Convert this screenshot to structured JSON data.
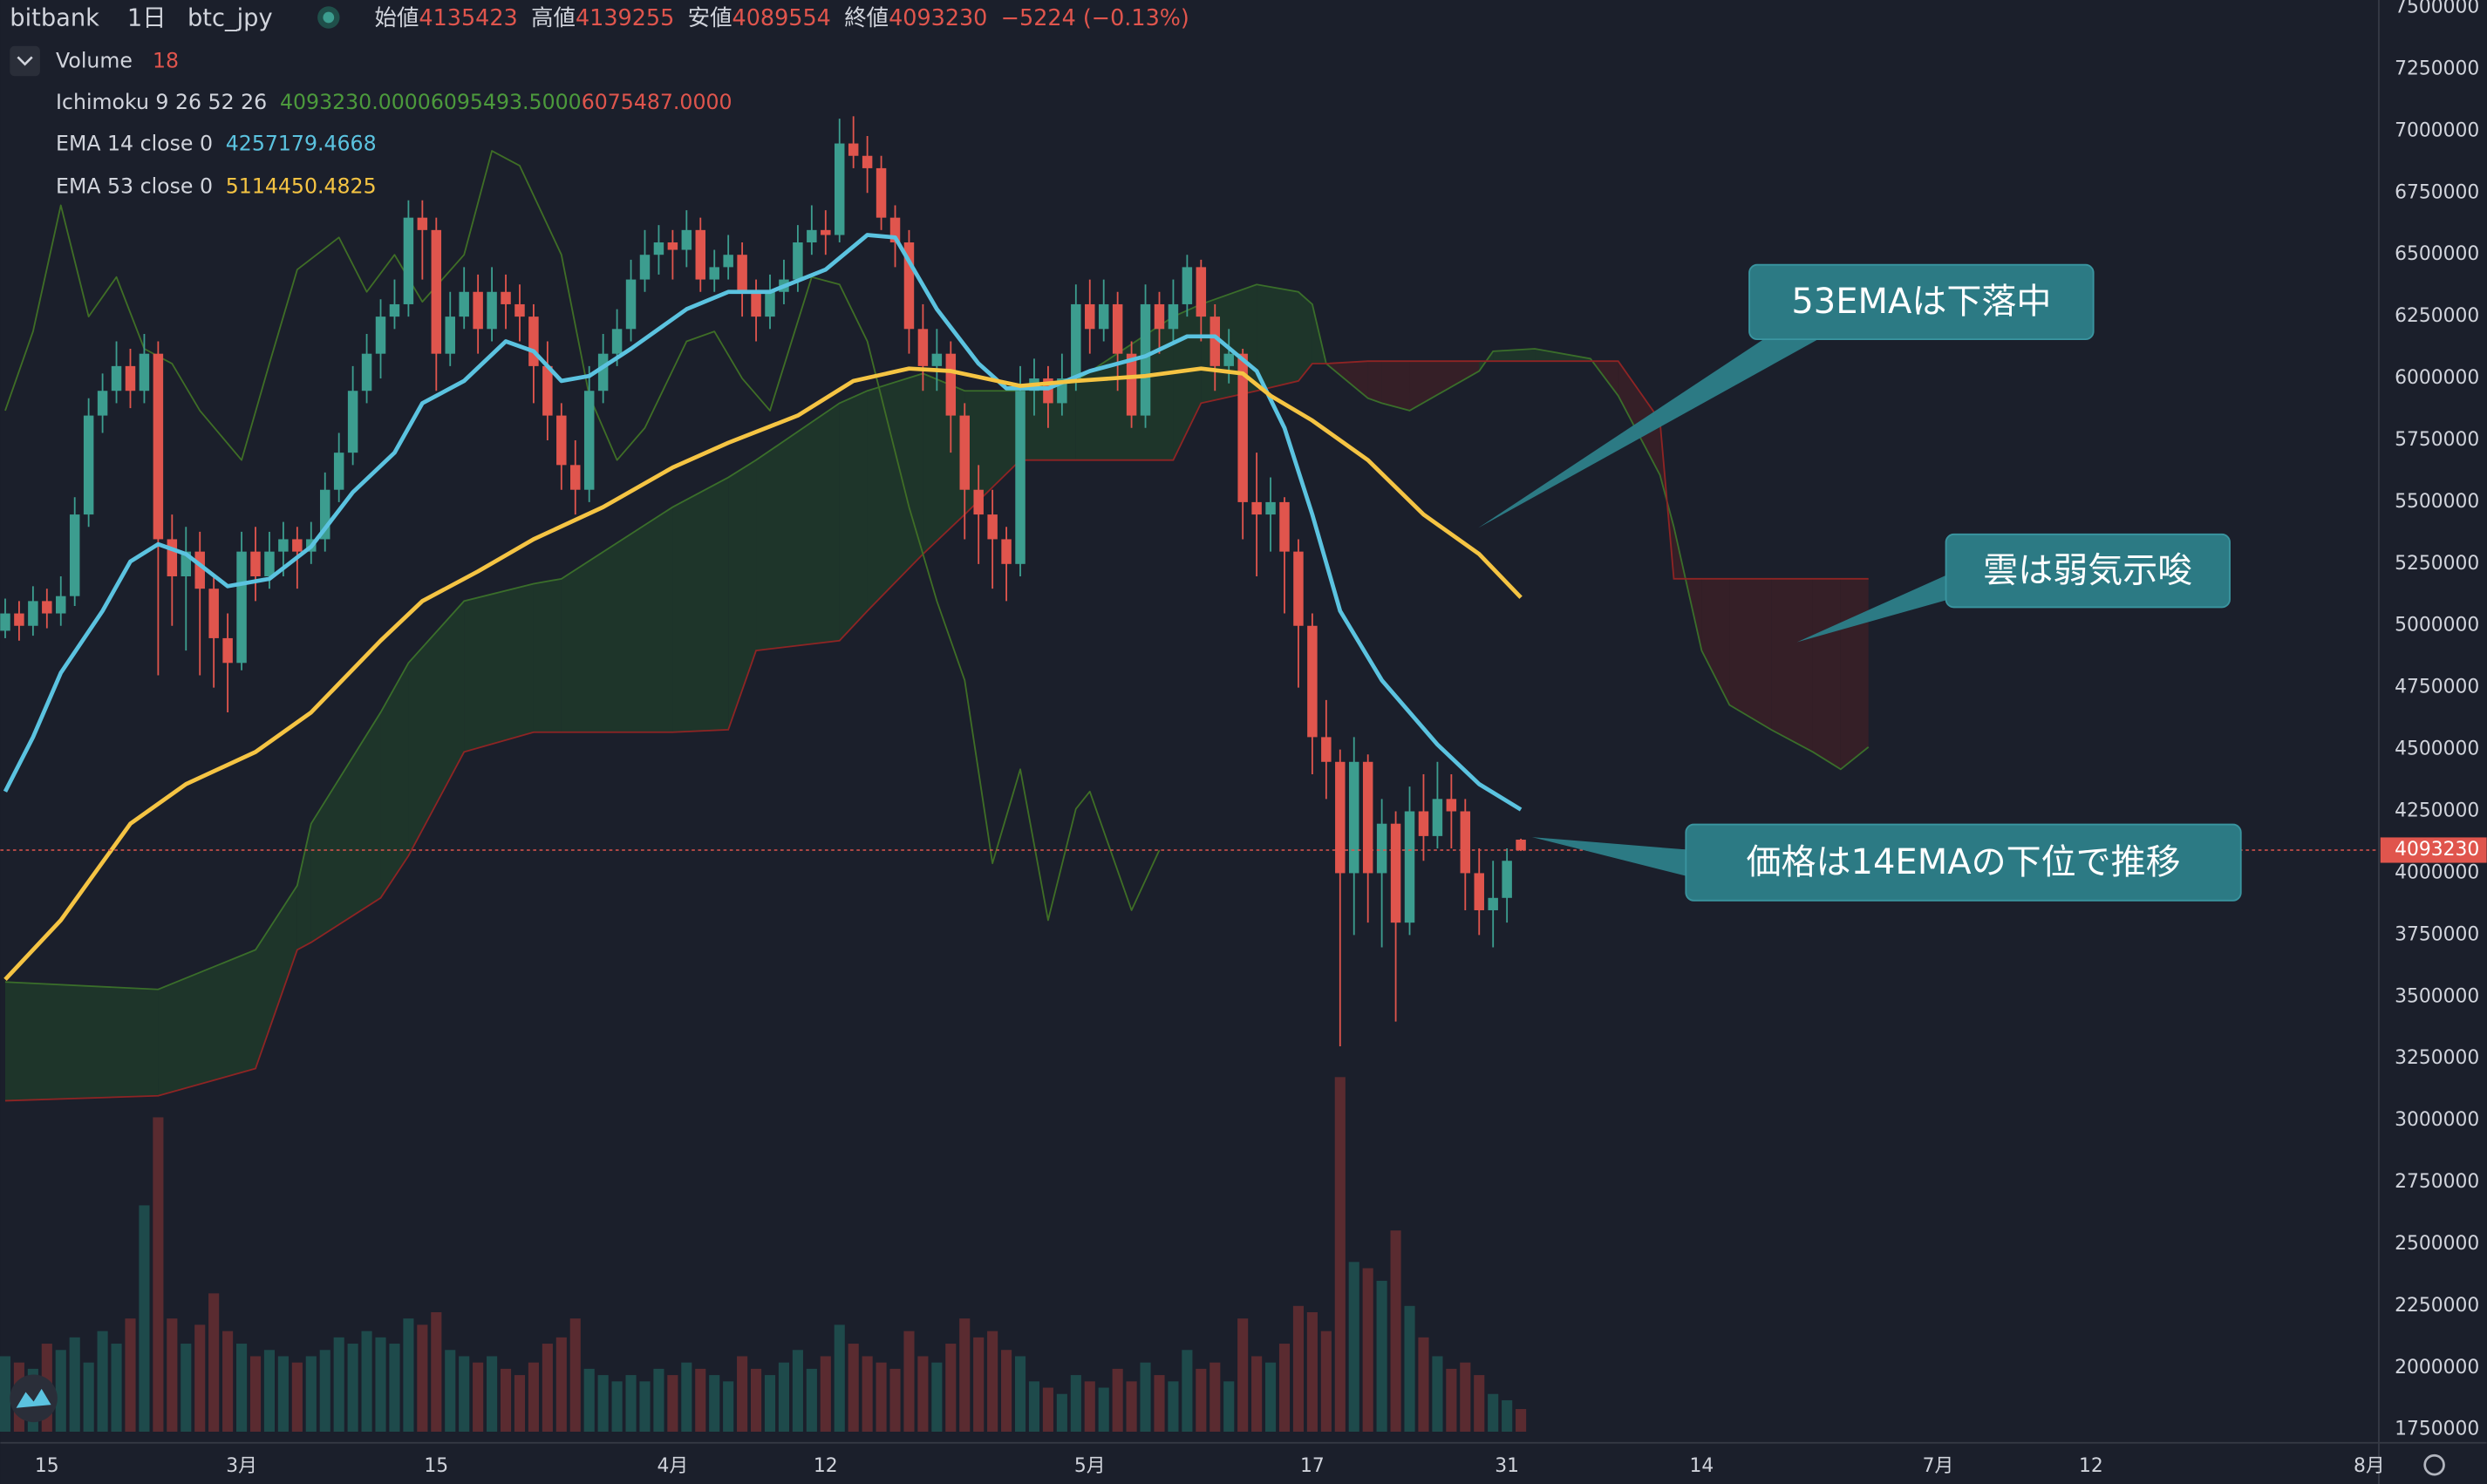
{
  "chart_data": {
    "type": "candlestick",
    "exchange": "bitbank",
    "interval": "1日",
    "symbol": "btc_jpy",
    "ohlc_labels": [
      "始値",
      "高値",
      "安値",
      "終値"
    ],
    "change": "−5224 (−0.13%)",
    "up_color": "#3c9d8f",
    "down_color": "#e0554d",
    "ohlc": [
      [
        4980000,
        5110000,
        4950000,
        5050000
      ],
      [
        5050000,
        5100000,
        4940000,
        5000000
      ],
      [
        5000000,
        5160000,
        4960000,
        5100000
      ],
      [
        5100000,
        5150000,
        4990000,
        5050000
      ],
      [
        5050000,
        5200000,
        5000000,
        5120000
      ],
      [
        5120000,
        5520000,
        5080000,
        5450000
      ],
      [
        5450000,
        5920000,
        5400000,
        5850000
      ],
      [
        5850000,
        6020000,
        5780000,
        5950000
      ],
      [
        5950000,
        6150000,
        5900000,
        6050000
      ],
      [
        6050000,
        6120000,
        5880000,
        5950000
      ],
      [
        5950000,
        6180000,
        5900000,
        6100000
      ],
      [
        6100000,
        6150000,
        4800000,
        5350000
      ],
      [
        5350000,
        5450000,
        5000000,
        5200000
      ],
      [
        5200000,
        5400000,
        4900000,
        5300000
      ],
      [
        5300000,
        5380000,
        4800000,
        5150000
      ],
      [
        5150000,
        5200000,
        4750000,
        4950000
      ],
      [
        4950000,
        5050000,
        4650000,
        4850000
      ],
      [
        4850000,
        5380000,
        4820000,
        5300000
      ],
      [
        5300000,
        5400000,
        5100000,
        5200000
      ],
      [
        5200000,
        5380000,
        5150000,
        5300000
      ],
      [
        5300000,
        5420000,
        5200000,
        5350000
      ],
      [
        5350000,
        5400000,
        5150000,
        5300000
      ],
      [
        5300000,
        5420000,
        5250000,
        5350000
      ],
      [
        5350000,
        5620000,
        5300000,
        5550000
      ],
      [
        5550000,
        5780000,
        5500000,
        5700000
      ],
      [
        5700000,
        6050000,
        5650000,
        5950000
      ],
      [
        5950000,
        6180000,
        5900000,
        6100000
      ],
      [
        6100000,
        6320000,
        6000000,
        6250000
      ],
      [
        6250000,
        6400000,
        6200000,
        6300000
      ],
      [
        6300000,
        6720000,
        6250000,
        6650000
      ],
      [
        6650000,
        6720000,
        6400000,
        6600000
      ],
      [
        6600000,
        6650000,
        5950000,
        6100000
      ],
      [
        6100000,
        6350000,
        6050000,
        6250000
      ],
      [
        6250000,
        6450000,
        6200000,
        6350000
      ],
      [
        6350000,
        6420000,
        6100000,
        6200000
      ],
      [
        6200000,
        6450000,
        6150000,
        6350000
      ],
      [
        6350000,
        6420000,
        6200000,
        6300000
      ],
      [
        6300000,
        6380000,
        6150000,
        6250000
      ],
      [
        6250000,
        6300000,
        5900000,
        6050000
      ],
      [
        6050000,
        6150000,
        5750000,
        5850000
      ],
      [
        5850000,
        5900000,
        5550000,
        5650000
      ],
      [
        5650000,
        5750000,
        5450000,
        5550000
      ],
      [
        5550000,
        6050000,
        5500000,
        5950000
      ],
      [
        5950000,
        6180000,
        5900000,
        6100000
      ],
      [
        6100000,
        6280000,
        6050000,
        6200000
      ],
      [
        6200000,
        6480000,
        6150000,
        6400000
      ],
      [
        6400000,
        6600000,
        6350000,
        6500000
      ],
      [
        6500000,
        6620000,
        6420000,
        6550000
      ],
      [
        6550000,
        6600000,
        6400000,
        6520000
      ],
      [
        6520000,
        6680000,
        6450000,
        6600000
      ],
      [
        6600000,
        6650000,
        6350000,
        6400000
      ],
      [
        6400000,
        6520000,
        6350000,
        6450000
      ],
      [
        6450000,
        6580000,
        6400000,
        6500000
      ],
      [
        6500000,
        6550000,
        6250000,
        6350000
      ],
      [
        6350000,
        6400000,
        6150000,
        6250000
      ],
      [
        6250000,
        6420000,
        6200000,
        6350000
      ],
      [
        6350000,
        6480000,
        6300000,
        6400000
      ],
      [
        6400000,
        6620000,
        6350000,
        6550000
      ],
      [
        6550000,
        6700000,
        6500000,
        6600000
      ],
      [
        6600000,
        6680000,
        6500000,
        6580000
      ],
      [
        6580000,
        7050000,
        6550000,
        6950000
      ],
      [
        6950000,
        7060000,
        6850000,
        6900000
      ],
      [
        6900000,
        6980000,
        6750000,
        6850000
      ],
      [
        6850000,
        6900000,
        6600000,
        6650000
      ],
      [
        6650000,
        6700000,
        6450000,
        6550000
      ],
      [
        6550000,
        6600000,
        6100000,
        6200000
      ],
      [
        6200000,
        6300000,
        5950000,
        6050000
      ],
      [
        6050000,
        6200000,
        5950000,
        6100000
      ],
      [
        6100000,
        6150000,
        5700000,
        5850000
      ],
      [
        5850000,
        5900000,
        5350000,
        5550000
      ],
      [
        5550000,
        5650000,
        5250000,
        5450000
      ],
      [
        5450000,
        5550000,
        5150000,
        5350000
      ],
      [
        5350000,
        5400000,
        5100000,
        5250000
      ],
      [
        5250000,
        6050000,
        5200000,
        5950000
      ],
      [
        5950000,
        6080000,
        5850000,
        6000000
      ],
      [
        6000000,
        6050000,
        5800000,
        5900000
      ],
      [
        5900000,
        6100000,
        5850000,
        6000000
      ],
      [
        6000000,
        6380000,
        5950000,
        6300000
      ],
      [
        6300000,
        6400000,
        6100000,
        6200000
      ],
      [
        6200000,
        6400000,
        6150000,
        6300000
      ],
      [
        6300000,
        6350000,
        5950000,
        6100000
      ],
      [
        6100000,
        6150000,
        5800000,
        5850000
      ],
      [
        5850000,
        6380000,
        5800000,
        6300000
      ],
      [
        6300000,
        6350000,
        6100000,
        6200000
      ],
      [
        6200000,
        6400000,
        6150000,
        6300000
      ],
      [
        6300000,
        6500000,
        6250000,
        6450000
      ],
      [
        6450000,
        6480000,
        6150000,
        6250000
      ],
      [
        6250000,
        6300000,
        5950000,
        6050000
      ],
      [
        6050000,
        6200000,
        5980000,
        6100000
      ],
      [
        6100000,
        6120000,
        5350000,
        5500000
      ],
      [
        5500000,
        5700000,
        5200000,
        5450000
      ],
      [
        5450000,
        5600000,
        5300000,
        5500000
      ],
      [
        5500000,
        5520000,
        5050000,
        5300000
      ],
      [
        5300000,
        5350000,
        4750000,
        5000000
      ],
      [
        5000000,
        5050000,
        4400000,
        4550000
      ],
      [
        4550000,
        4700000,
        4300000,
        4450000
      ],
      [
        4450000,
        4500000,
        3300000,
        4000000
      ],
      [
        4000000,
        4550000,
        3750000,
        4450000
      ],
      [
        4450000,
        4480000,
        3800000,
        4000000
      ],
      [
        4000000,
        4300000,
        3700000,
        4200000
      ],
      [
        4200000,
        4250000,
        3400000,
        3800000
      ],
      [
        3800000,
        4350000,
        3750000,
        4250000
      ],
      [
        4250000,
        4400000,
        4050000,
        4150000
      ],
      [
        4150000,
        4450000,
        4100000,
        4300000
      ],
      [
        4300000,
        4400000,
        4100000,
        4250000
      ],
      [
        4250000,
        4300000,
        3850000,
        4000000
      ],
      [
        4000000,
        4100000,
        3750000,
        3850000
      ],
      [
        3850000,
        4050000,
        3700000,
        3900000
      ],
      [
        3900000,
        4100000,
        3800000,
        4050000
      ],
      [
        4135423,
        4139255,
        4089554,
        4093230
      ]
    ],
    "volume": {
      "name": "Volume",
      "ylim": [
        0,
        290
      ],
      "up_color": "#1e4a4b",
      "down_color": "#5a2b30",
      "values": [
        60,
        55,
        50,
        70,
        65,
        75,
        55,
        80,
        70,
        90,
        180,
        250,
        90,
        70,
        85,
        110,
        80,
        70,
        60,
        65,
        60,
        55,
        60,
        65,
        75,
        70,
        80,
        75,
        70,
        90,
        85,
        95,
        65,
        60,
        55,
        60,
        50,
        45,
        55,
        70,
        75,
        90,
        50,
        45,
        40,
        45,
        40,
        50,
        45,
        55,
        50,
        45,
        40,
        60,
        50,
        45,
        55,
        65,
        50,
        60,
        85,
        70,
        60,
        55,
        50,
        80,
        60,
        55,
        70,
        90,
        75,
        80,
        65,
        60,
        40,
        35,
        30,
        45,
        40,
        35,
        50,
        40,
        55,
        45,
        40,
        65,
        50,
        55,
        40,
        90,
        60,
        55,
        70,
        100,
        95,
        80,
        282,
        135,
        130,
        120,
        160,
        100,
        75,
        60,
        50,
        55,
        45,
        30,
        25,
        18
      ]
    },
    "ichimoku": {
      "name": "Ichimoku 9 26 52 26",
      "value_labels": [
        "4093230.0000",
        "6095493.5000",
        "6075487.0000"
      ],
      "label_colors": [
        "#4c9a3c",
        "#4c9a3c",
        "#e0554d"
      ],
      "lagging": {
        "color": "#3f6e26",
        "x": [
          0,
          2,
          4,
          6,
          8,
          10,
          12,
          14,
          17,
          19,
          21,
          24,
          26,
          28,
          30,
          33,
          35,
          37,
          40,
          42,
          44,
          46,
          49,
          51,
          53,
          55,
          58,
          60,
          62,
          65,
          67,
          69,
          71,
          73,
          75,
          77,
          78,
          81,
          83
        ],
        "values": [
          5870000,
          6190000,
          6700000,
          6250000,
          6410000,
          6120000,
          6060000,
          5870000,
          5670000,
          6060000,
          6440000,
          6570000,
          6350000,
          6500000,
          6310000,
          6500000,
          6920000,
          6860000,
          6500000,
          5930000,
          5670000,
          5800000,
          6150000,
          6190000,
          6000000,
          5870000,
          6410000,
          6380000,
          6150000,
          5480000,
          5100000,
          4780000,
          4040000,
          4420000,
          3810000,
          4260000,
          4330000,
          3850000,
          4093230
        ]
      },
      "cloud": {
        "span_a_color": "#3a6e2a",
        "span_b_color": "#8e2424",
        "up_fill": "#1f3a2a",
        "down_fill": "#3a2027",
        "x": [
          0,
          11,
          18,
          21,
          22,
          27,
          29,
          33,
          38,
          40,
          48,
          52,
          54,
          60,
          62,
          66,
          69,
          73,
          77,
          84,
          86,
          90,
          93,
          94,
          95,
          98,
          99,
          101,
          106,
          107,
          110,
          114,
          116,
          119,
          120,
          122,
          124,
          127,
          130,
          132,
          134
        ],
        "span_a": [
          3560000,
          3530000,
          3690000,
          3950000,
          4200000,
          4650000,
          4850000,
          5100000,
          5170000,
          5190000,
          5480000,
          5600000,
          5670000,
          5900000,
          5950000,
          6020000,
          5950000,
          5950000,
          5990000,
          6250000,
          6300000,
          6380000,
          6350000,
          6300000,
          6060000,
          5920000,
          5900000,
          5870000,
          6030000,
          6110000,
          6120000,
          6080000,
          5930000,
          5610000,
          5400000,
          4900000,
          4680000,
          4580000,
          4490000,
          4420000,
          4510000
        ],
        "span_b": [
          3080000,
          3100000,
          3210000,
          3690000,
          3720000,
          3900000,
          4070000,
          4490000,
          4570000,
          4570000,
          4570000,
          4580000,
          4900000,
          4940000,
          5060000,
          5290000,
          5450000,
          5670000,
          5670000,
          5670000,
          5900000,
          5950000,
          5990000,
          6060000,
          6060000,
          6070000,
          6070000,
          6070000,
          6070000,
          6070000,
          6070000,
          6070000,
          6070000,
          5830000,
          5190000,
          5190000,
          5190000,
          5190000,
          5190000,
          5190000,
          5190000
        ]
      }
    },
    "ema": [
      {
        "name": "EMA 14 close 0",
        "color": "#5bc3e0",
        "value_label": "4257179.4668",
        "x": [
          0,
          2,
          4,
          7,
          9,
          11,
          13,
          16,
          19,
          22,
          25,
          28,
          30,
          33,
          36,
          38,
          40,
          42,
          45,
          49,
          52,
          55,
          59,
          62,
          64,
          67,
          70,
          72,
          75,
          78,
          82,
          85,
          87,
          90,
          92,
          94,
          96,
          99,
          101,
          103,
          106,
          109
        ],
        "values": [
          4330000,
          4550000,
          4810000,
          5060000,
          5260000,
          5330000,
          5290000,
          5160000,
          5190000,
          5320000,
          5540000,
          5700000,
          5900000,
          5990000,
          6150000,
          6110000,
          5990000,
          6010000,
          6120000,
          6280000,
          6350000,
          6350000,
          6440000,
          6580000,
          6570000,
          6280000,
          6060000,
          5960000,
          5960000,
          6030000,
          6090000,
          6170000,
          6170000,
          6030000,
          5800000,
          5450000,
          5060000,
          4780000,
          4650000,
          4520000,
          4360000,
          4257179.4668
        ]
      },
      {
        "name": "EMA 53 close 0",
        "color": "#f5c443",
        "value_label": "5114450.4825",
        "x": [
          0,
          4,
          9,
          13,
          18,
          22,
          27,
          30,
          34,
          38,
          43,
          48,
          52,
          57,
          61,
          65,
          68,
          73,
          77,
          82,
          86,
          89,
          91,
          94,
          98,
          102,
          106,
          109
        ],
        "values": [
          3570000,
          3810000,
          4200000,
          4360000,
          4490000,
          4650000,
          4940000,
          5100000,
          5220000,
          5350000,
          5480000,
          5640000,
          5740000,
          5850000,
          5990000,
          6040000,
          6030000,
          5970000,
          5990000,
          6010000,
          6040000,
          6020000,
          5930000,
          5830000,
          5670000,
          5450000,
          5290000,
          5114450.4825
        ]
      }
    ],
    "xlim": [
      -0.35,
      170.7
    ],
    "xticks": [
      {
        "value": 3,
        "label": "15"
      },
      {
        "value": 17,
        "label": "3月"
      },
      {
        "value": 31,
        "label": "15"
      },
      {
        "value": 48,
        "label": "4月"
      },
      {
        "value": 59,
        "label": "12"
      },
      {
        "value": 78,
        "label": "5月"
      },
      {
        "value": 94,
        "label": "17"
      },
      {
        "value": 108,
        "label": "31"
      },
      {
        "value": 122,
        "label": "14"
      },
      {
        "value": 139,
        "label": "7月"
      },
      {
        "value": 150,
        "label": "12"
      },
      {
        "value": 170,
        "label": "8月"
      }
    ],
    "ylim": [
      1710000,
      7530000
    ],
    "yticks": [
      1750000,
      2000000,
      2250000,
      2500000,
      2750000,
      3000000,
      3250000,
      3500000,
      3750000,
      4000000,
      4250000,
      4500000,
      4750000,
      5000000,
      5250000,
      5500000,
      5750000,
      6000000,
      6250000,
      6500000,
      6750000,
      7000000,
      7250000,
      7500000
    ],
    "annotations": [
      "53EMAは下落中",
      "雲は弱気示唆",
      "価格は14EMAの下位で推移"
    ]
  }
}
